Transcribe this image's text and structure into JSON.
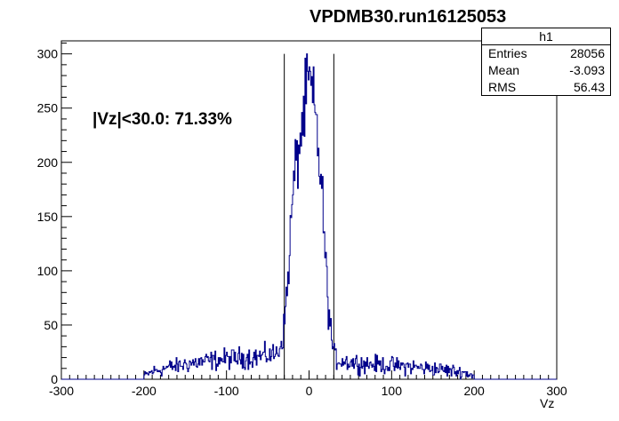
{
  "title": "VPDMB30.run16125053",
  "stats_box": {
    "name": "h1",
    "rows": [
      {
        "label": "Entries",
        "value": "28056"
      },
      {
        "label": "Mean",
        "value": "-3.093"
      },
      {
        "label": "RMS",
        "value": "56.43"
      }
    ]
  },
  "annotation": "|Vz|<30.0: 71.33%",
  "chart_data": {
    "type": "line",
    "title": "VPDMB30.run16125053",
    "xlabel": "Vz",
    "ylabel": "",
    "xlim": [
      -300,
      300
    ],
    "ylim": [
      0,
      312
    ],
    "x_ticks": [
      -300,
      -200,
      -100,
      0,
      100,
      200,
      300
    ],
    "y_ticks": [
      0,
      50,
      100,
      150,
      200,
      250,
      300
    ],
    "cut_lines_x": [
      -30,
      30
    ],
    "line_color": "#00008b",
    "series": [
      {
        "x": [
          -200,
          -190,
          -180,
          -170,
          -160,
          -150,
          -140,
          -130,
          -120,
          -110,
          -100,
          -90,
          -80,
          -70,
          -60,
          -50,
          -40,
          -35,
          -30,
          -28,
          -25,
          -22,
          -20,
          -18,
          -15,
          -12,
          -10,
          -8,
          -5,
          -3,
          0,
          2,
          5,
          8,
          10,
          12,
          15,
          18,
          20,
          22,
          25,
          28,
          30,
          35,
          40,
          50,
          60,
          70,
          80,
          90,
          100,
          110,
          120,
          130,
          140,
          150,
          160,
          170,
          180,
          190,
          200
        ],
        "y": [
          3,
          7,
          9,
          11,
          12,
          14,
          15,
          16,
          17,
          18,
          19,
          19,
          20,
          20,
          21,
          22,
          23,
          30,
          48,
          70,
          100,
          140,
          165,
          185,
          200,
          215,
          225,
          235,
          250,
          265,
          275,
          268,
          255,
          240,
          225,
          205,
          180,
          140,
          110,
          80,
          55,
          35,
          22,
          18,
          17,
          16,
          15,
          14,
          14,
          13,
          13,
          12,
          12,
          11,
          10,
          10,
          9,
          8,
          7,
          6,
          3
        ]
      }
    ]
  }
}
